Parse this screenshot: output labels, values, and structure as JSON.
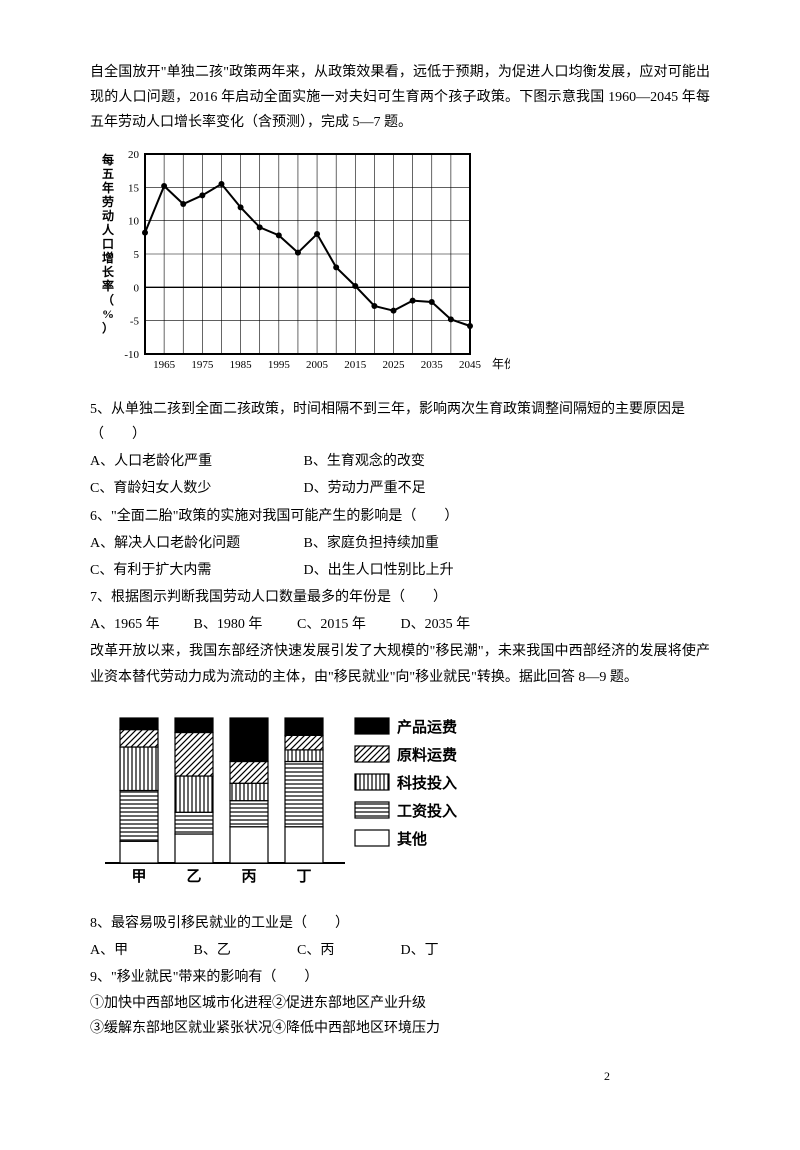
{
  "intro1": "自全国放开\"单独二孩\"政策两年来，从政策效果看，远低于预期，为促进人口均衡发展，应对可能出现的人口问题，2016 年启动全面实施一对夫妇可生育两个孩子政策。下图示意我国 1960—2045 年每五年劳动人口增长率变化（含预测），完成 5—7 题。",
  "chart1": {
    "type": "line",
    "ylabel": "每五年劳动人口增长率（%）",
    "xlabel": "年份",
    "xticks": [
      "1965",
      "1975",
      "1985",
      "1995",
      "2005",
      "2015",
      "2025",
      "2035",
      "2045"
    ],
    "ylim": [
      -10,
      20
    ],
    "ytick_step": 5,
    "yticks": [
      -10,
      -5,
      0,
      5,
      10,
      15,
      20
    ],
    "grid_color": "#000000",
    "line_color": "#000000",
    "background_color": "#ffffff",
    "line_width": 2,
    "marker": "circle",
    "marker_size": 3,
    "points": [
      {
        "x": 1960,
        "y": 8.2
      },
      {
        "x": 1965,
        "y": 15.2
      },
      {
        "x": 1970,
        "y": 12.5
      },
      {
        "x": 1975,
        "y": 13.8
      },
      {
        "x": 1980,
        "y": 15.5
      },
      {
        "x": 1985,
        "y": 12.0
      },
      {
        "x": 1990,
        "y": 9.0
      },
      {
        "x": 1995,
        "y": 7.8
      },
      {
        "x": 2000,
        "y": 5.2
      },
      {
        "x": 2005,
        "y": 8.0
      },
      {
        "x": 2010,
        "y": 3.0
      },
      {
        "x": 2015,
        "y": 0.2
      },
      {
        "x": 2020,
        "y": -2.8
      },
      {
        "x": 2025,
        "y": -3.5
      },
      {
        "x": 2030,
        "y": -2.0
      },
      {
        "x": 2035,
        "y": -2.2
      },
      {
        "x": 2040,
        "y": -4.8
      },
      {
        "x": 2045,
        "y": -5.8
      }
    ]
  },
  "q5": {
    "stem": "5、从单独二孩到全面二孩政策，时间相隔不到三年，影响两次生育政策调整间隔短的主要原因是（　　）",
    "A": "A、人口老龄化严重",
    "B": "B、生育观念的改变",
    "C": "C、育龄妇女人数少",
    "D": "D、劳动力严重不足"
  },
  "q6": {
    "stem": "6、\"全面二胎\"政策的实施对我国可能产生的影响是（　　）",
    "A": "A、解决人口老龄化问题",
    "B": "B、家庭负担持续加重",
    "C": "C、有利于扩大内需",
    "D": "D、出生人口性别比上升"
  },
  "q7": {
    "stem": "7、根据图示判断我国劳动人口数量最多的年份是（　　）",
    "A": "A、1965 年",
    "B": "B、1980 年",
    "C": "C、2015 年",
    "D": "D、2035 年"
  },
  "intro2": "改革开放以来，我国东部经济快速发展引发了大规模的\"移民潮\"，未来我国中西部经济的发展将使产业资本替代劳动力成为流动的主体，由\"移民就业\"向\"移业就民\"转换。据此回答 8—9 题。",
  "chart2": {
    "type": "stacked-bar",
    "categories": [
      "甲",
      "乙",
      "丙",
      "丁"
    ],
    "legend": [
      "产品运费",
      "原料运费",
      "科技投入",
      "工资投入",
      "其他"
    ],
    "legend_patterns": [
      "solid",
      "diag-hatch",
      "vert-hatch",
      "horiz-hatch",
      "blank"
    ],
    "bar_width": 0.7,
    "colors": {
      "outline": "#000000",
      "fill": "#ffffff"
    },
    "bars": {
      "甲": {
        "产品运费": 8,
        "原料运费": 12,
        "科技投入": 30,
        "工资投入": 35,
        "其他": 15
      },
      "乙": {
        "产品运费": 10,
        "原料运费": 30,
        "科技投入": 25,
        "工资投入": 15,
        "其他": 20
      },
      "丙": {
        "产品运费": 30,
        "原料运费": 15,
        "科技投入": 12,
        "工资投入": 18,
        "其他": 25
      },
      "丁": {
        "产品运费": 12,
        "原料运费": 10,
        "科技投入": 8,
        "工资投入": 45,
        "其他": 25
      }
    }
  },
  "q8": {
    "stem": "8、最容易吸引移民就业的工业是（　　）",
    "A": "A、甲",
    "B": "B、乙",
    "C": "C、丙",
    "D": "D、丁"
  },
  "q9": {
    "stem": "9、\"移业就民\"带来的影响有（　　）",
    "line1": "①加快中西部地区城市化进程②促进东部地区产业升级",
    "line2": "③缓解东部地区就业紧张状况④降低中西部地区环境压力"
  },
  "page": "2"
}
